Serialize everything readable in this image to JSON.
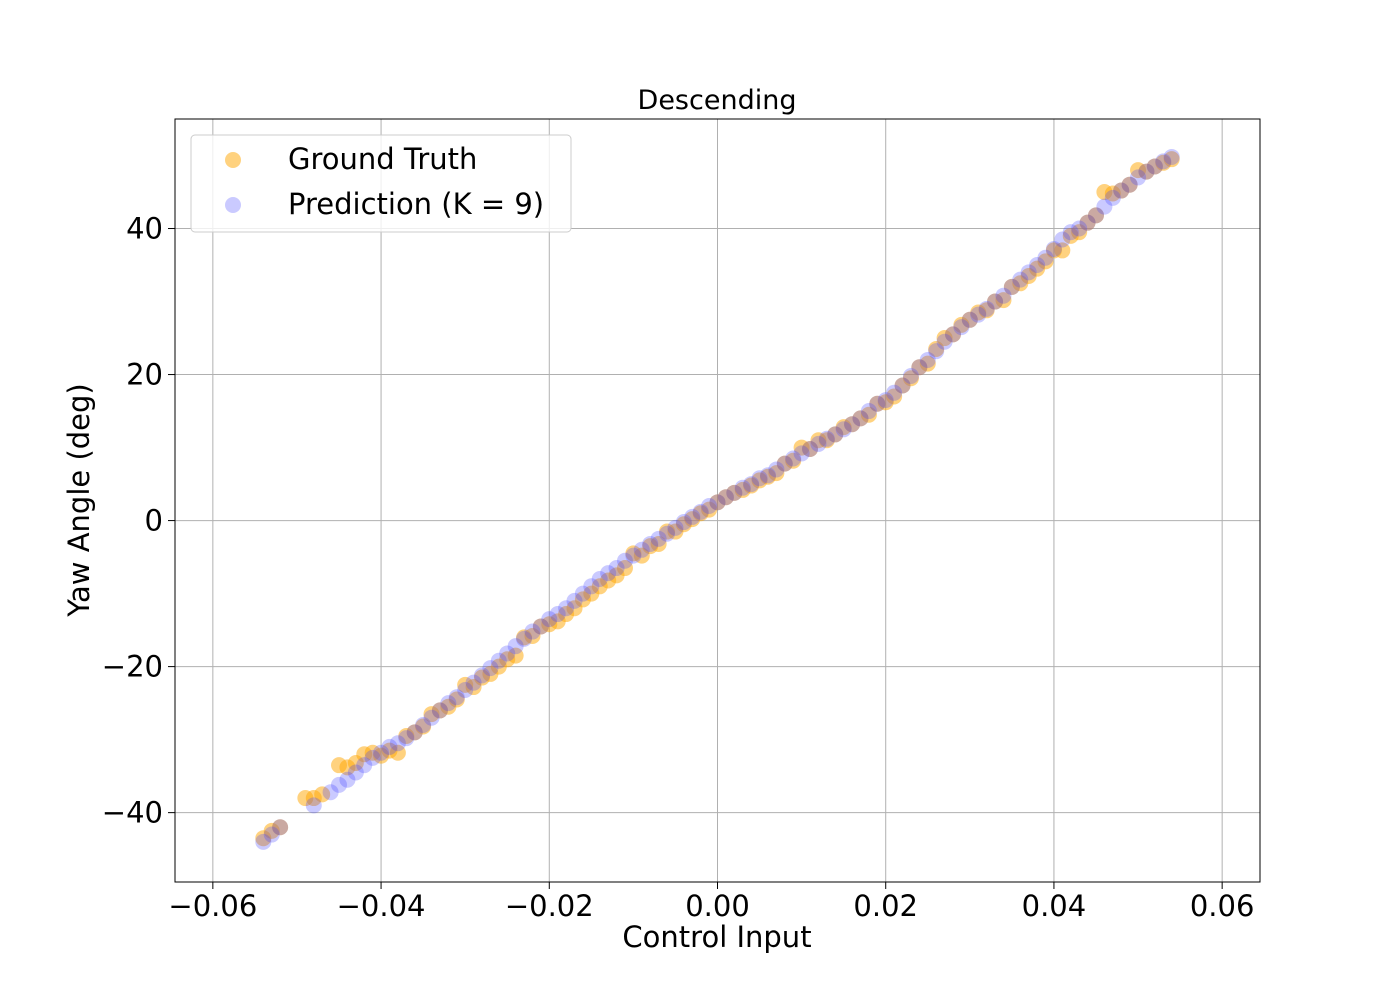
{
  "chart_data": {
    "type": "scatter",
    "title": "Descending",
    "xlabel": "Control Input",
    "ylabel": "Yaw Angle (deg)",
    "xlim": [
      -0.0645,
      0.0645
    ],
    "ylim": [
      -49.5,
      55.0
    ],
    "xticks": [
      -0.06,
      -0.04,
      -0.02,
      0.0,
      0.02,
      0.04,
      0.06
    ],
    "xtick_labels": [
      "−0.06",
      "−0.04",
      "−0.02",
      "0.00",
      "0.02",
      "0.04",
      "0.06"
    ],
    "yticks": [
      -40,
      -20,
      0,
      20,
      40
    ],
    "ytick_labels": [
      "−40",
      "−20",
      "0",
      "20",
      "40"
    ],
    "grid": true,
    "legend_position": "upper-left",
    "series": [
      {
        "name": "Ground Truth",
        "color": "#ffa500",
        "opacity": 0.5,
        "points": [
          [
            -0.054,
            -43.5
          ],
          [
            -0.053,
            -42.5
          ],
          [
            -0.052,
            -42.0
          ],
          [
            -0.049,
            -38.0
          ],
          [
            -0.048,
            -38.0
          ],
          [
            -0.047,
            -37.5
          ],
          [
            -0.045,
            -33.5
          ],
          [
            -0.044,
            -33.8
          ],
          [
            -0.043,
            -33.2
          ],
          [
            -0.042,
            -32.0
          ],
          [
            -0.041,
            -31.8
          ],
          [
            -0.04,
            -32.2
          ],
          [
            -0.039,
            -31.5
          ],
          [
            -0.038,
            -31.8
          ],
          [
            -0.037,
            -29.5
          ],
          [
            -0.036,
            -29.0
          ],
          [
            -0.035,
            -28.2
          ],
          [
            -0.034,
            -26.5
          ],
          [
            -0.033,
            -26.0
          ],
          [
            -0.032,
            -25.5
          ],
          [
            -0.031,
            -24.5
          ],
          [
            -0.03,
            -22.5
          ],
          [
            -0.029,
            -22.8
          ],
          [
            -0.028,
            -21.5
          ],
          [
            -0.027,
            -21.0
          ],
          [
            -0.026,
            -20.0
          ],
          [
            -0.025,
            -19.0
          ],
          [
            -0.024,
            -18.5
          ],
          [
            -0.023,
            -16.0
          ],
          [
            -0.022,
            -15.8
          ],
          [
            -0.021,
            -14.5
          ],
          [
            -0.02,
            -14.2
          ],
          [
            -0.019,
            -13.8
          ],
          [
            -0.018,
            -12.8
          ],
          [
            -0.017,
            -12.0
          ],
          [
            -0.016,
            -10.8
          ],
          [
            -0.015,
            -10.0
          ],
          [
            -0.014,
            -9.0
          ],
          [
            -0.013,
            -8.2
          ],
          [
            -0.012,
            -7.5
          ],
          [
            -0.011,
            -6.5
          ],
          [
            -0.01,
            -4.5
          ],
          [
            -0.009,
            -4.8
          ],
          [
            -0.008,
            -3.5
          ],
          [
            -0.007,
            -3.2
          ],
          [
            -0.006,
            -1.5
          ],
          [
            -0.005,
            -1.5
          ],
          [
            -0.004,
            -0.5
          ],
          [
            -0.003,
            0.2
          ],
          [
            -0.002,
            1.0
          ],
          [
            -0.001,
            1.5
          ],
          [
            0.0,
            2.5
          ],
          [
            0.001,
            3.2
          ],
          [
            0.002,
            3.8
          ],
          [
            0.003,
            4.2
          ],
          [
            0.004,
            4.8
          ],
          [
            0.005,
            5.5
          ],
          [
            0.006,
            6.0
          ],
          [
            0.007,
            6.5
          ],
          [
            0.008,
            7.8
          ],
          [
            0.009,
            8.2
          ],
          [
            0.01,
            10.0
          ],
          [
            0.011,
            9.8
          ],
          [
            0.012,
            11.0
          ],
          [
            0.013,
            11.0
          ],
          [
            0.014,
            11.8
          ],
          [
            0.015,
            12.8
          ],
          [
            0.016,
            13.2
          ],
          [
            0.017,
            14.0
          ],
          [
            0.018,
            14.5
          ],
          [
            0.019,
            16.0
          ],
          [
            0.02,
            16.2
          ],
          [
            0.021,
            17.0
          ],
          [
            0.022,
            18.5
          ],
          [
            0.023,
            19.5
          ],
          [
            0.024,
            21.0
          ],
          [
            0.025,
            21.5
          ],
          [
            0.026,
            23.5
          ],
          [
            0.027,
            25.0
          ],
          [
            0.028,
            25.5
          ],
          [
            0.029,
            26.8
          ],
          [
            0.03,
            27.5
          ],
          [
            0.031,
            28.5
          ],
          [
            0.032,
            28.8
          ],
          [
            0.033,
            30.0
          ],
          [
            0.034,
            30.2
          ],
          [
            0.035,
            32.0
          ],
          [
            0.036,
            32.5
          ],
          [
            0.037,
            33.5
          ],
          [
            0.038,
            34.5
          ],
          [
            0.039,
            35.5
          ],
          [
            0.04,
            37.0
          ],
          [
            0.041,
            37.0
          ],
          [
            0.042,
            39.0
          ],
          [
            0.043,
            39.5
          ],
          [
            0.044,
            40.8
          ],
          [
            0.045,
            41.8
          ],
          [
            0.046,
            45.0
          ],
          [
            0.047,
            44.8
          ],
          [
            0.048,
            45.2
          ],
          [
            0.049,
            46.0
          ],
          [
            0.05,
            48.0
          ],
          [
            0.051,
            47.8
          ],
          [
            0.052,
            48.5
          ],
          [
            0.053,
            49.0
          ],
          [
            0.054,
            49.5
          ]
        ]
      },
      {
        "name": "Prediction (K = 9)",
        "color": "#4040ff",
        "opacity": 0.28,
        "points": [
          [
            -0.054,
            -44.0
          ],
          [
            -0.053,
            -43.0
          ],
          [
            -0.052,
            -42.0
          ],
          [
            -0.048,
            -39.0
          ],
          [
            -0.046,
            -37.2
          ],
          [
            -0.045,
            -36.2
          ],
          [
            -0.044,
            -35.5
          ],
          [
            -0.043,
            -34.5
          ],
          [
            -0.042,
            -33.5
          ],
          [
            -0.041,
            -32.5
          ],
          [
            -0.04,
            -31.8
          ],
          [
            -0.039,
            -31.0
          ],
          [
            -0.038,
            -30.5
          ],
          [
            -0.037,
            -29.8
          ],
          [
            -0.036,
            -29.0
          ],
          [
            -0.035,
            -28.0
          ],
          [
            -0.034,
            -27.0
          ],
          [
            -0.033,
            -26.0
          ],
          [
            -0.032,
            -25.0
          ],
          [
            -0.031,
            -24.2
          ],
          [
            -0.03,
            -23.2
          ],
          [
            -0.029,
            -22.2
          ],
          [
            -0.028,
            -21.2
          ],
          [
            -0.027,
            -20.2
          ],
          [
            -0.026,
            -19.2
          ],
          [
            -0.025,
            -18.2
          ],
          [
            -0.024,
            -17.2
          ],
          [
            -0.023,
            -16.2
          ],
          [
            -0.022,
            -15.2
          ],
          [
            -0.021,
            -14.5
          ],
          [
            -0.02,
            -13.5
          ],
          [
            -0.019,
            -12.8
          ],
          [
            -0.018,
            -12.0
          ],
          [
            -0.017,
            -11.0
          ],
          [
            -0.016,
            -10.0
          ],
          [
            -0.015,
            -9.0
          ],
          [
            -0.014,
            -8.0
          ],
          [
            -0.013,
            -7.2
          ],
          [
            -0.012,
            -6.5
          ],
          [
            -0.011,
            -5.5
          ],
          [
            -0.01,
            -4.8
          ],
          [
            -0.009,
            -4.0
          ],
          [
            -0.008,
            -3.2
          ],
          [
            -0.007,
            -2.5
          ],
          [
            -0.006,
            -1.8
          ],
          [
            -0.005,
            -1.0
          ],
          [
            -0.004,
            -0.2
          ],
          [
            -0.003,
            0.5
          ],
          [
            -0.002,
            1.2
          ],
          [
            -0.001,
            2.0
          ],
          [
            0.0,
            2.5
          ],
          [
            0.001,
            3.2
          ],
          [
            0.002,
            3.8
          ],
          [
            0.003,
            4.5
          ],
          [
            0.004,
            5.0
          ],
          [
            0.005,
            5.8
          ],
          [
            0.006,
            6.2
          ],
          [
            0.007,
            7.0
          ],
          [
            0.008,
            7.8
          ],
          [
            0.009,
            8.5
          ],
          [
            0.01,
            9.2
          ],
          [
            0.011,
            9.8
          ],
          [
            0.012,
            10.5
          ],
          [
            0.013,
            11.2
          ],
          [
            0.014,
            11.8
          ],
          [
            0.015,
            12.5
          ],
          [
            0.016,
            13.2
          ],
          [
            0.017,
            14.0
          ],
          [
            0.018,
            15.0
          ],
          [
            0.019,
            16.0
          ],
          [
            0.02,
            16.5
          ],
          [
            0.021,
            17.5
          ],
          [
            0.022,
            18.5
          ],
          [
            0.023,
            19.8
          ],
          [
            0.024,
            21.0
          ],
          [
            0.025,
            22.0
          ],
          [
            0.026,
            23.2
          ],
          [
            0.027,
            24.5
          ],
          [
            0.028,
            25.5
          ],
          [
            0.029,
            26.5
          ],
          [
            0.03,
            27.5
          ],
          [
            0.031,
            28.2
          ],
          [
            0.032,
            29.0
          ],
          [
            0.033,
            30.0
          ],
          [
            0.034,
            30.8
          ],
          [
            0.035,
            32.0
          ],
          [
            0.036,
            33.0
          ],
          [
            0.037,
            34.0
          ],
          [
            0.038,
            35.0
          ],
          [
            0.039,
            36.0
          ],
          [
            0.04,
            37.2
          ],
          [
            0.041,
            38.5
          ],
          [
            0.042,
            39.5
          ],
          [
            0.043,
            40.0
          ],
          [
            0.044,
            40.8
          ],
          [
            0.045,
            41.8
          ],
          [
            0.046,
            43.0
          ],
          [
            0.047,
            44.2
          ],
          [
            0.048,
            45.2
          ],
          [
            0.049,
            46.0
          ],
          [
            0.05,
            47.0
          ],
          [
            0.051,
            47.8
          ],
          [
            0.052,
            48.5
          ],
          [
            0.053,
            49.2
          ],
          [
            0.054,
            49.8
          ]
        ]
      }
    ]
  }
}
